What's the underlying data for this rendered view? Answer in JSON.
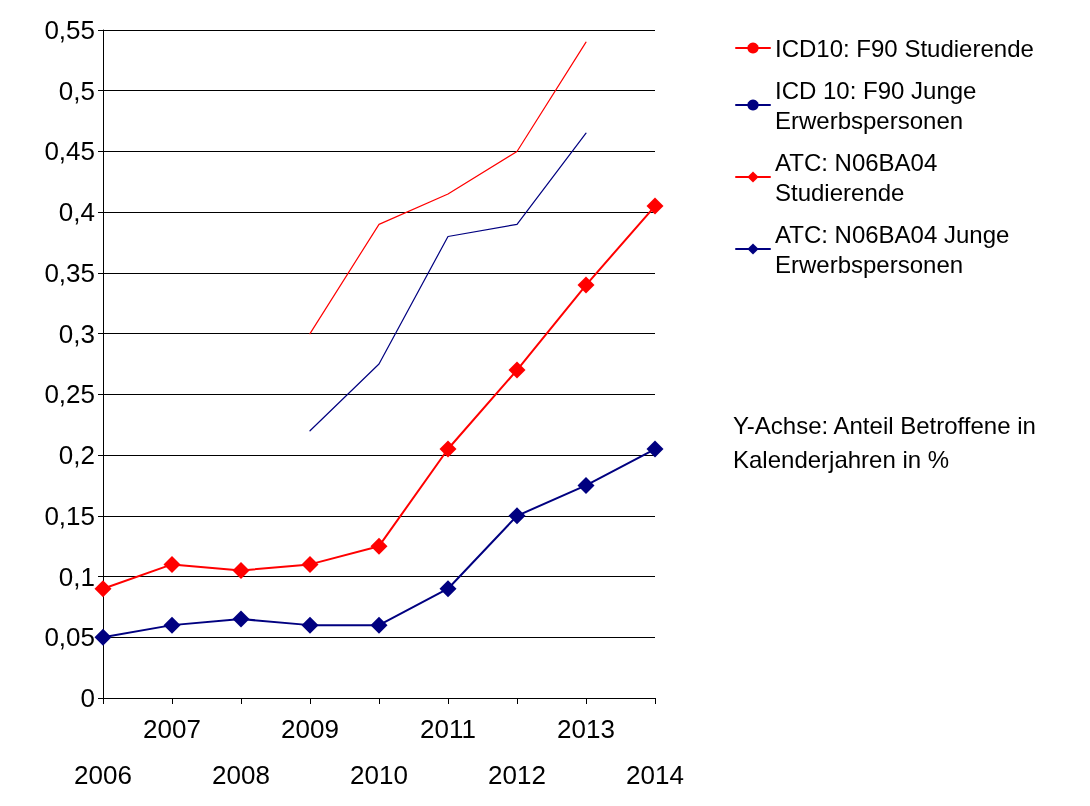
{
  "chart_data": {
    "type": "line",
    "categories": [
      "2006",
      "2007",
      "2008",
      "2009",
      "2010",
      "2011",
      "2012",
      "2013",
      "2014"
    ],
    "ylim": [
      0,
      0.55
    ],
    "yticks": [
      0,
      {
        "value": 0.05,
        "label": "0,05"
      },
      {
        "value": 0.1,
        "label": "0,1"
      },
      {
        "value": 0.15,
        "label": "0,15"
      },
      {
        "value": 0.2,
        "label": "0,2"
      },
      {
        "value": 0.25,
        "label": "0,25"
      },
      {
        "value": 0.3,
        "label": "0,3"
      },
      {
        "value": 0.35,
        "label": "0,35"
      },
      {
        "value": 0.4,
        "label": "0,4"
      },
      {
        "value": 0.45,
        "label": "0,45"
      },
      {
        "value": 0.5,
        "label": "0,5"
      },
      {
        "value": 0.55,
        "label": "0,55"
      }
    ],
    "grid": "y",
    "legend": "right",
    "series": [
      {
        "name": "ICD10: F90 Studierende",
        "color": "#ff0000",
        "marker": "none",
        "values": [
          null,
          null,
          null,
          0.3,
          0.39,
          0.415,
          0.45,
          0.54,
          null
        ]
      },
      {
        "name": "ICD 10: F90 Junge Erwerbspersonen",
        "color": "#000080",
        "marker": "none",
        "values": [
          null,
          null,
          null,
          0.22,
          0.275,
          0.38,
          0.39,
          0.465,
          null
        ]
      },
      {
        "name": "ATC: N06BA04 Studierende",
        "color": "#ff0000",
        "marker": "diamond",
        "values": [
          0.09,
          0.11,
          0.105,
          0.11,
          0.125,
          0.205,
          0.27,
          0.34,
          0.405
        ]
      },
      {
        "name": "ATC: N06BA04 Junge Erwerbspersonen",
        "color": "#000080",
        "marker": "diamond",
        "values": [
          0.05,
          0.06,
          0.065,
          0.06,
          0.06,
          0.09,
          0.15,
          0.175,
          0.205
        ]
      }
    ],
    "annotations": [
      "Y-Achse: Anteil Betroffene in Kalenderjahren in %"
    ]
  }
}
